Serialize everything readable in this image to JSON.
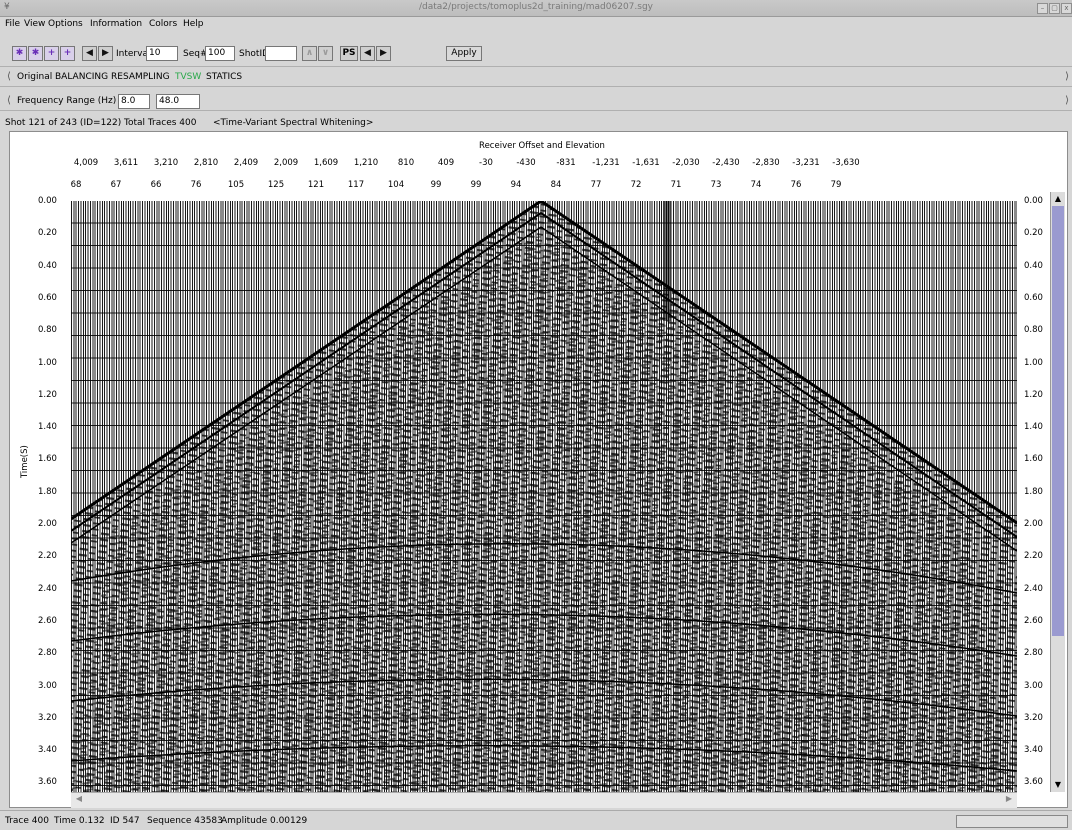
{
  "window": {
    "title": "/data2/projects/tomoplus2d_training/mad06207.sgy",
    "sys_menu": "¥",
    "controls": [
      "–",
      "▢",
      "x"
    ]
  },
  "menu": [
    "File",
    "View",
    "Options",
    "Information",
    "Colors",
    "Help"
  ],
  "toolbar": {
    "interval_label": "Interval",
    "interval_value": "10",
    "seq_label": "Seq#",
    "seq_value": "100",
    "shotid_label": "ShotID",
    "shotid_value": "",
    "ps_label": "PS",
    "apply_label": "Apply"
  },
  "process_tabs": {
    "items": [
      "Original",
      "BALANCING",
      "RESAMPLING",
      "TVSW",
      "STATICS"
    ],
    "active": "TVSW",
    "active_color": "#2aa84a"
  },
  "frequency": {
    "label": "Frequency Range (Hz)",
    "low": "8.0",
    "high": "48.0"
  },
  "info": {
    "shot_text": "Shot 121 of 243 (ID=122)",
    "traces_text": "Total Traces 400",
    "mode_text": "<Time-Variant Spectral Whitening>"
  },
  "plot": {
    "header": "Receiver Offset and Elevation",
    "offsets": [
      "4,009",
      "3,611",
      "3,210",
      "2,810",
      "2,409",
      "2,009",
      "1,609",
      "1,210",
      "810",
      "409",
      "-30",
      "-430",
      "-831",
      "-1,231",
      "-1,631",
      "-2,030",
      "-2,430",
      "-2,830",
      "-3,231",
      "-3,630"
    ],
    "elevations": [
      "68",
      "67",
      "66",
      "76",
      "105",
      "125",
      "121",
      "117",
      "104",
      "99",
      "99",
      "94",
      "84",
      "77",
      "72",
      "71",
      "73",
      "74",
      "76",
      "79"
    ],
    "time_ticks": [
      "0.00",
      "0.20",
      "0.40",
      "0.60",
      "0.80",
      "1.00",
      "1.20",
      "1.40",
      "1.60",
      "1.80",
      "2.00",
      "2.20",
      "2.40",
      "2.60",
      "2.80",
      "3.00",
      "3.20",
      "3.40",
      "3.60"
    ],
    "y_label": "Time(S)"
  },
  "status": {
    "trace": "Trace 400",
    "time": "Time 0.132",
    "id": "ID 547",
    "sequence": "Sequence 43583",
    "amplitude": "Amplitude 0.00129"
  }
}
